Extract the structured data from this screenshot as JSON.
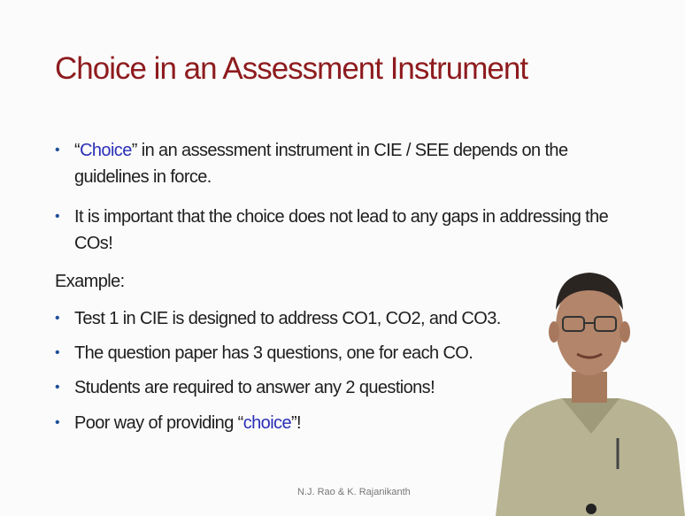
{
  "slide": {
    "title": "Choice in an Assessment Instrument",
    "emphasis_color": "#2a2fb8",
    "bullets": [
      {
        "segments": [
          {
            "text": "“",
            "emphasis": false
          },
          {
            "text": "Choice",
            "emphasis": true
          },
          {
            "text": "” in an assessment instrument in CIE / SEE depends on the guidelines in force.",
            "emphasis": false
          }
        ]
      },
      {
        "segments": [
          {
            "text": "It is important that the choice does not lead to any gaps in addressing the COs!",
            "emphasis": false
          }
        ]
      }
    ],
    "example_label": "Example:",
    "example_bullets": [
      {
        "segments": [
          {
            "text": "Test 1 in CIE is designed to address CO1, CO2, and CO3.",
            "emphasis": false
          }
        ]
      },
      {
        "segments": [
          {
            "text": "The question paper has 3 questions, one for each CO.",
            "emphasis": false
          }
        ]
      },
      {
        "segments": [
          {
            "text": "Students are required to answer any 2 questions!",
            "emphasis": false
          }
        ]
      },
      {
        "segments": [
          {
            "text": "Poor way of providing “",
            "emphasis": false
          },
          {
            "text": "choice",
            "emphasis": true
          },
          {
            "text": "”!",
            "emphasis": false
          }
        ]
      }
    ],
    "footer": "N.J. Rao & K. Rajanikanth"
  }
}
